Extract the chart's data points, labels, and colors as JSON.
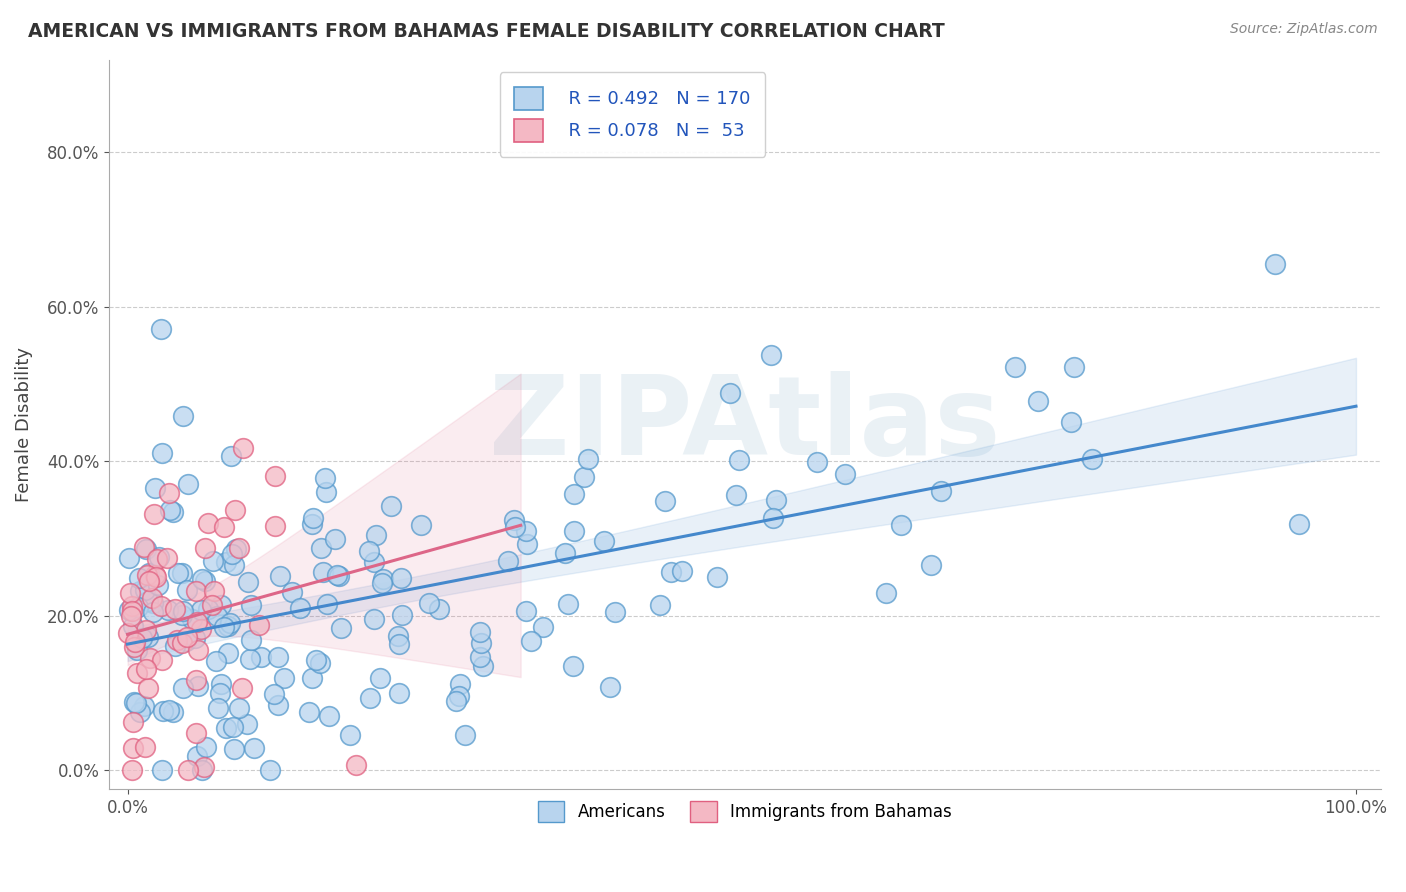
{
  "title": "AMERICAN VS IMMIGRANTS FROM BAHAMAS FEMALE DISABILITY CORRELATION CHART",
  "source": "Source: ZipAtlas.com",
  "ylabel_label": "Female Disability",
  "legend_r1": "R = 0.492",
  "legend_n1": "N = 170",
  "legend_r2": "R = 0.078",
  "legend_n2": "N =  53",
  "blue_face_color": "#b8d4ee",
  "blue_edge_color": "#5599cc",
  "pink_face_color": "#f4b8c4",
  "pink_edge_color": "#e06080",
  "blue_trend_color": "#4488cc",
  "pink_trend_color": "#dd6688",
  "background_color": "#ffffff",
  "grid_color": "#cccccc",
  "watermark": "ZIPAtlas",
  "watermark_color": "#ccdde8",
  "r1": 0.492,
  "n1": 170,
  "r2": 0.078,
  "n2": 53,
  "seed": 42
}
